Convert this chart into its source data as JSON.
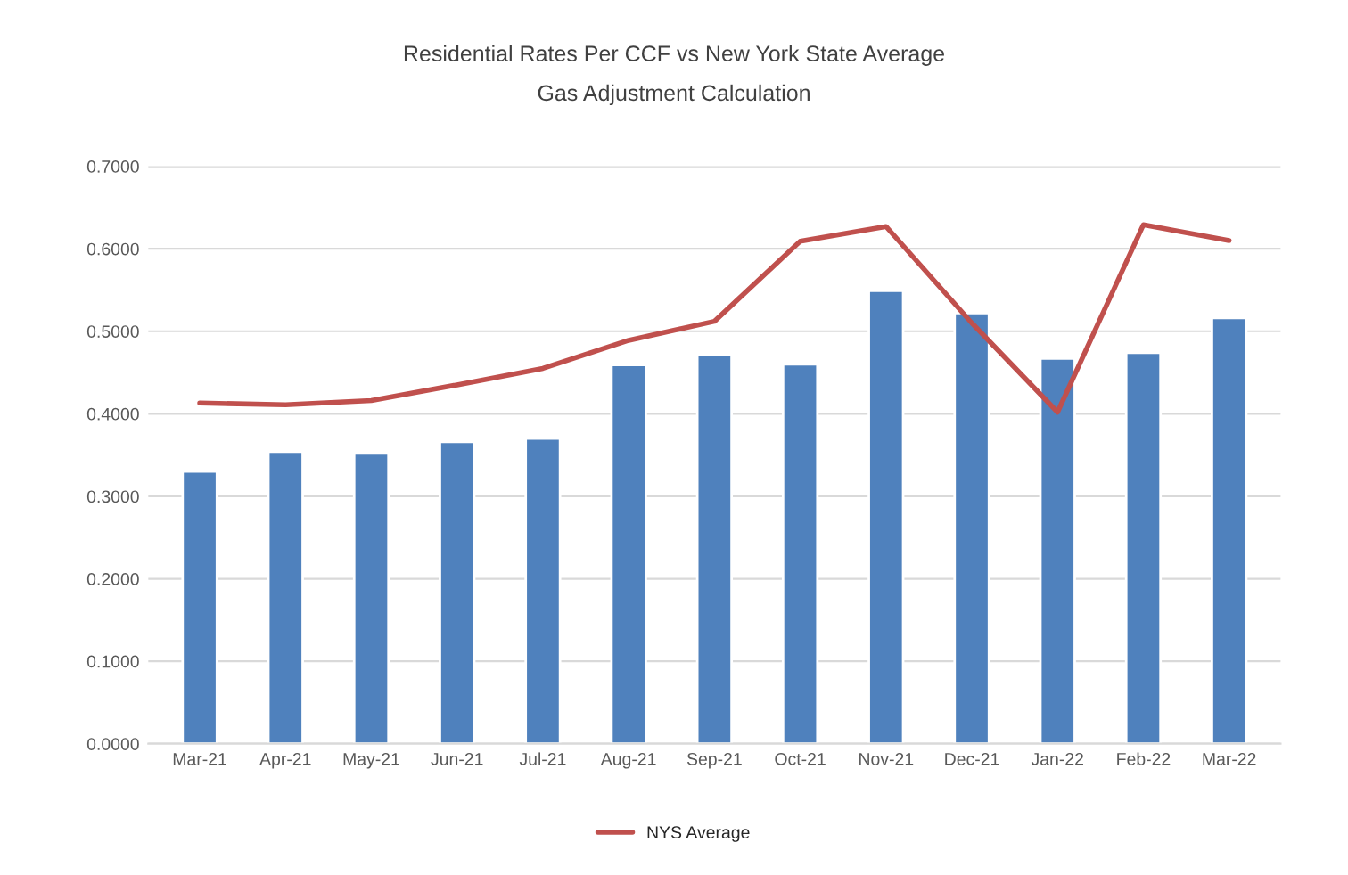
{
  "chart_data": {
    "type": "bar",
    "title": "Residential Rates Per CCF vs New York State Average",
    "subtitle": "Gas Adjustment Calculation",
    "categories": [
      "Mar-21",
      "Apr-21",
      "May-21",
      "Jun-21",
      "Jul-21",
      "Aug-21",
      "Sep-21",
      "Oct-21",
      "Nov-21",
      "Dec-21",
      "Jan-22",
      "Feb-22",
      "Mar-22"
    ],
    "series": [
      {
        "color": "#4f81bd",
        "values": [
          0.33,
          0.354,
          0.352,
          0.366,
          0.37,
          0.459,
          0.471,
          0.46,
          0.549,
          0.522,
          0.467,
          0.474,
          0.516
        ]
      },
      {
        "type": "line",
        "name": "NYS Average",
        "color": "#c0504d",
        "values": [
          0.413,
          0.411,
          0.416,
          0.435,
          0.455,
          0.489,
          0.512,
          0.609,
          0.627,
          0.51,
          0.402,
          0.629,
          0.61
        ]
      }
    ],
    "ylim": [
      0,
      0.7
    ],
    "yticks": [
      {
        "value": 0,
        "label": "0.0000"
      },
      {
        "value": 0.1,
        "label": "0.1000"
      },
      {
        "value": 0.2,
        "label": "0.2000"
      },
      {
        "value": 0.3,
        "label": "0.3000"
      },
      {
        "value": 0.4,
        "label": "0.4000"
      },
      {
        "value": 0.5,
        "label": "0.5000"
      },
      {
        "value": 0.6,
        "label": "0.6000"
      },
      {
        "value": 0.7,
        "label": "0.7000"
      }
    ],
    "grid": "y",
    "legend": "bottom",
    "marker": "none",
    "line_style": "solid"
  }
}
